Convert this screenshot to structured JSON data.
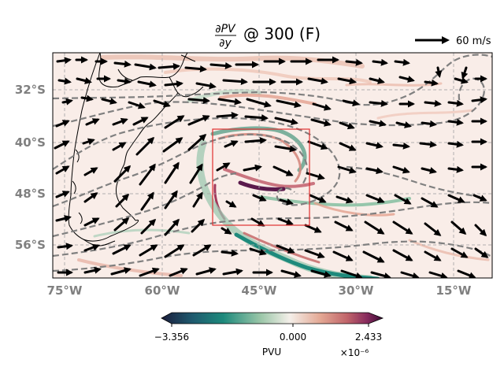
{
  "figure": {
    "title_prefix": "∂PV",
    "title_denominator": "∂y",
    "title_suffix": "@ 300 (F)"
  },
  "reference_arrow": {
    "label": "60 m/s",
    "speed_ms": 60
  },
  "map": {
    "lon_ticks": [
      "75°W",
      "60°W",
      "45°W",
      "30°W",
      "15°W"
    ],
    "lat_ticks": [
      "32°S",
      "40°S",
      "48°S",
      "56°S"
    ],
    "gridlines": true,
    "highlight_box_color": "#e03030"
  },
  "colorbar": {
    "min_label": "−3.356",
    "mid_label": "0.000",
    "max_label": "2.433",
    "units": "PVU",
    "scale_label": "×10⁻⁶",
    "colors": [
      "#1b1d3c",
      "#1f5a6e",
      "#1e8a7c",
      "#7fb89a",
      "#f4efe9",
      "#e7b09b",
      "#c96d6a",
      "#8c2a5e",
      "#3a0b35"
    ]
  },
  "colors": {
    "coast": "#000000",
    "contour": "#808080",
    "background_field": "#f9ede8"
  }
}
